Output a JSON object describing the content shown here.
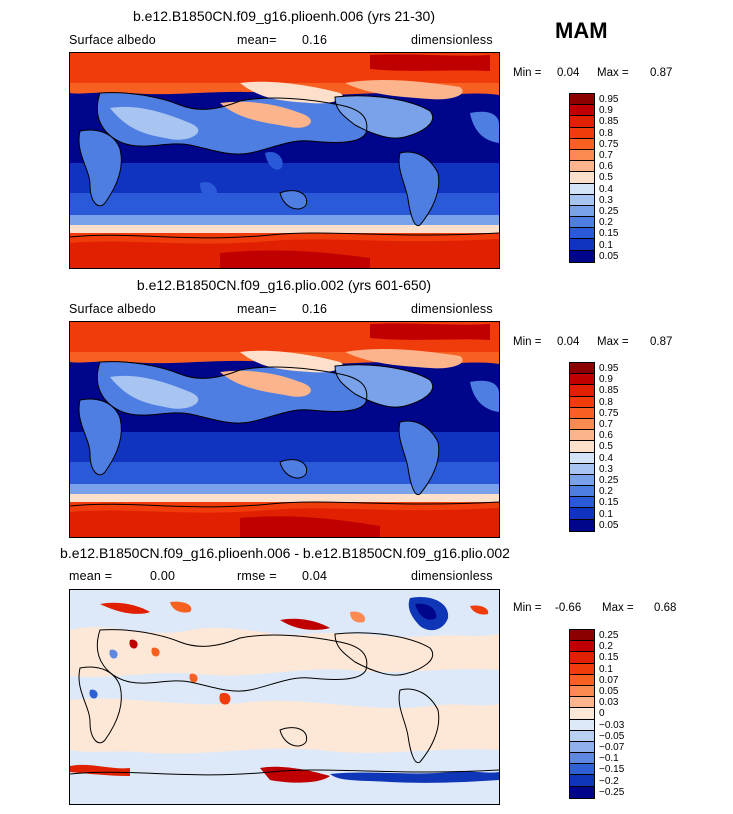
{
  "season": "MAM",
  "panels": [
    {
      "title": "b.e12.B1850CN.f09_g16.plioenh.006 (yrs 21-30)",
      "left": "Surface albedo",
      "mid_label": "mean=",
      "mid_value": "0.16",
      "right": "dimensionless",
      "min_label": "Min =",
      "min_value": "0.04",
      "max_label": "Max =",
      "max_value": "0.87",
      "legend": {
        "labels": [
          "0.95",
          "0.9",
          "0.85",
          "0.8",
          "0.75",
          "0.7",
          "0.6",
          "0.5",
          "0.4",
          "0.3",
          "0.25",
          "0.2",
          "0.15",
          "0.1",
          "0.05"
        ],
        "colors": [
          "#8b0000",
          "#c00000",
          "#e02000",
          "#f03c0a",
          "#f76020",
          "#fa8a50",
          "#fbb48c",
          "#fde0cc",
          "#d4e4f8",
          "#a8c4f0",
          "#7aa2ea",
          "#4f7ee3",
          "#2a5ad8",
          "#1034c0",
          "#00068c"
        ]
      }
    },
    {
      "title": "b.e12.B1850CN.f09_g16.plio.002 (yrs 601-650)",
      "left": "Surface albedo",
      "mid_label": "mean=",
      "mid_value": "0.16",
      "right": "dimensionless",
      "min_label": "Min =",
      "min_value": "0.04",
      "max_label": "Max =",
      "max_value": "0.87",
      "legend": {
        "labels": [
          "0.95",
          "0.9",
          "0.85",
          "0.8",
          "0.75",
          "0.7",
          "0.6",
          "0.5",
          "0.4",
          "0.3",
          "0.25",
          "0.2",
          "0.15",
          "0.1",
          "0.05"
        ],
        "colors": [
          "#8b0000",
          "#c00000",
          "#e02000",
          "#f03c0a",
          "#f76020",
          "#fa8a50",
          "#fbb48c",
          "#fde0cc",
          "#d4e4f8",
          "#a8c4f0",
          "#7aa2ea",
          "#4f7ee3",
          "#2a5ad8",
          "#1034c0",
          "#00068c"
        ]
      }
    },
    {
      "title": "b.e12.B1850CN.f09_g16.plioenh.006 - b.e12.B1850CN.f09_g16.plio.002",
      "left": "mean =",
      "left_value": "0.00",
      "mid_label": "rmse =",
      "mid_value": "0.04",
      "right": "dimensionless",
      "min_label": "Min =",
      "min_value": "-0.66",
      "max_label": "Max =",
      "max_value": "0.68",
      "legend": {
        "labels": [
          "0.25",
          "0.2",
          "0.15",
          "0.1",
          "0.07",
          "0.05",
          "0.03",
          "0",
          "−0.03",
          "−0.05",
          "−0.07",
          "−0.1",
          "−0.15",
          "−0.2",
          "−0.25"
        ],
        "colors": [
          "#8b0000",
          "#c00000",
          "#e02000",
          "#f03c0a",
          "#f76020",
          "#fa8a50",
          "#fbb48c",
          "#fde8d8",
          "#dde9f8",
          "#b9d0f2",
          "#8fb0ec",
          "#5f88e2",
          "#2f60d6",
          "#1036b8",
          "#00068c"
        ]
      }
    }
  ]
}
